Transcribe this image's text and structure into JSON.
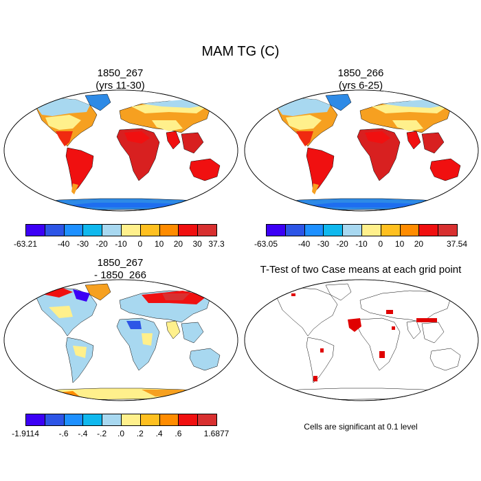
{
  "title": "MAM TG (C)",
  "panels": [
    {
      "title_line1": "1850_267",
      "title_line2": "(yrs 11-30)"
    },
    {
      "title_line1": "1850_266",
      "title_line2": "(yrs 6-25)"
    },
    {
      "title_line1": "1850_267",
      "title_line2": "- 1850_266"
    },
    {
      "title_line1": "T-Test of two Case means at each grid point",
      "title_line2": ""
    }
  ],
  "colorbars": [
    {
      "labels": [
        "-63.21",
        "-40",
        "-30",
        "-20",
        "-10",
        "0",
        "10",
        "20",
        "30",
        "37.3"
      ],
      "colors": [
        "#3c00f5",
        "#2d55e6",
        "#1e90ff",
        "#10b8ee",
        "#a8d8f0",
        "#fff08c",
        "#ffc020",
        "#ff8c00",
        "#f01010",
        "#d83030"
      ]
    },
    {
      "labels": [
        "-63.05",
        "-40",
        "-30",
        "-20",
        "-10",
        "0",
        "10",
        "20",
        "37.54"
      ],
      "colors": [
        "#3c00f5",
        "#2d55e6",
        "#1e90ff",
        "#10b8ee",
        "#a8d8f0",
        "#fff08c",
        "#ffc020",
        "#ff8c00",
        "#f01010",
        "#d83030"
      ]
    },
    {
      "labels": [
        "-1.9114",
        "-.6",
        "-.4",
        "-.2",
        ".0",
        ".2",
        ".4",
        ".6",
        "1.6877"
      ],
      "colors": [
        "#3c00f5",
        "#2d55e6",
        "#1e90ff",
        "#10b8ee",
        "#a8d8f0",
        "#fff08c",
        "#ffc020",
        "#ff8c00",
        "#f01010",
        "#d83030"
      ]
    }
  ],
  "significance_note": "Cells are significant at 0.1 level"
}
